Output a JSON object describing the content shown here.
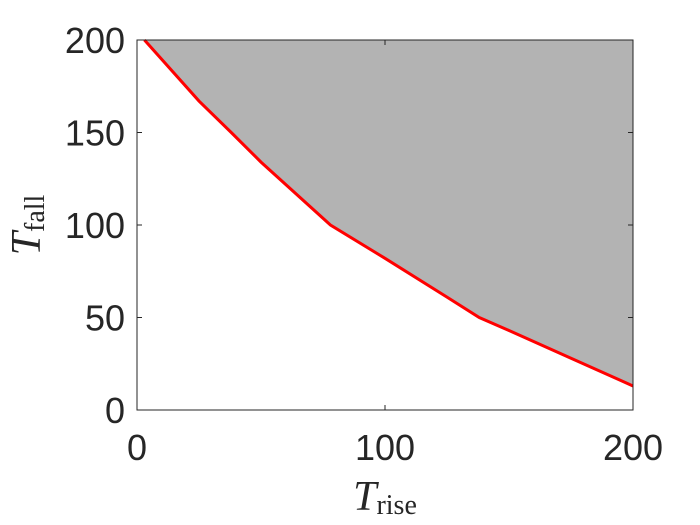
{
  "chart_data": {
    "type": "line",
    "xlabel": {
      "symbol": "T",
      "subscript": "rise"
    },
    "ylabel": {
      "symbol": "T",
      "subscript": "fall"
    },
    "x": [
      3,
      25,
      38,
      50,
      78,
      100,
      125,
      138,
      150,
      175,
      200
    ],
    "series": [
      {
        "color": "#ff0000",
        "values": [
          200,
          167,
          150,
          134,
          100,
          82,
          61,
          50,
          43,
          28,
          13
        ]
      }
    ],
    "fill_above": "#b3b3b3",
    "xlim": [
      0,
      200
    ],
    "xticks": [
      0,
      100,
      200
    ],
    "ylim": [
      0,
      200
    ],
    "yticks": [
      0,
      50,
      100,
      150,
      200
    ],
    "grid": false
  }
}
